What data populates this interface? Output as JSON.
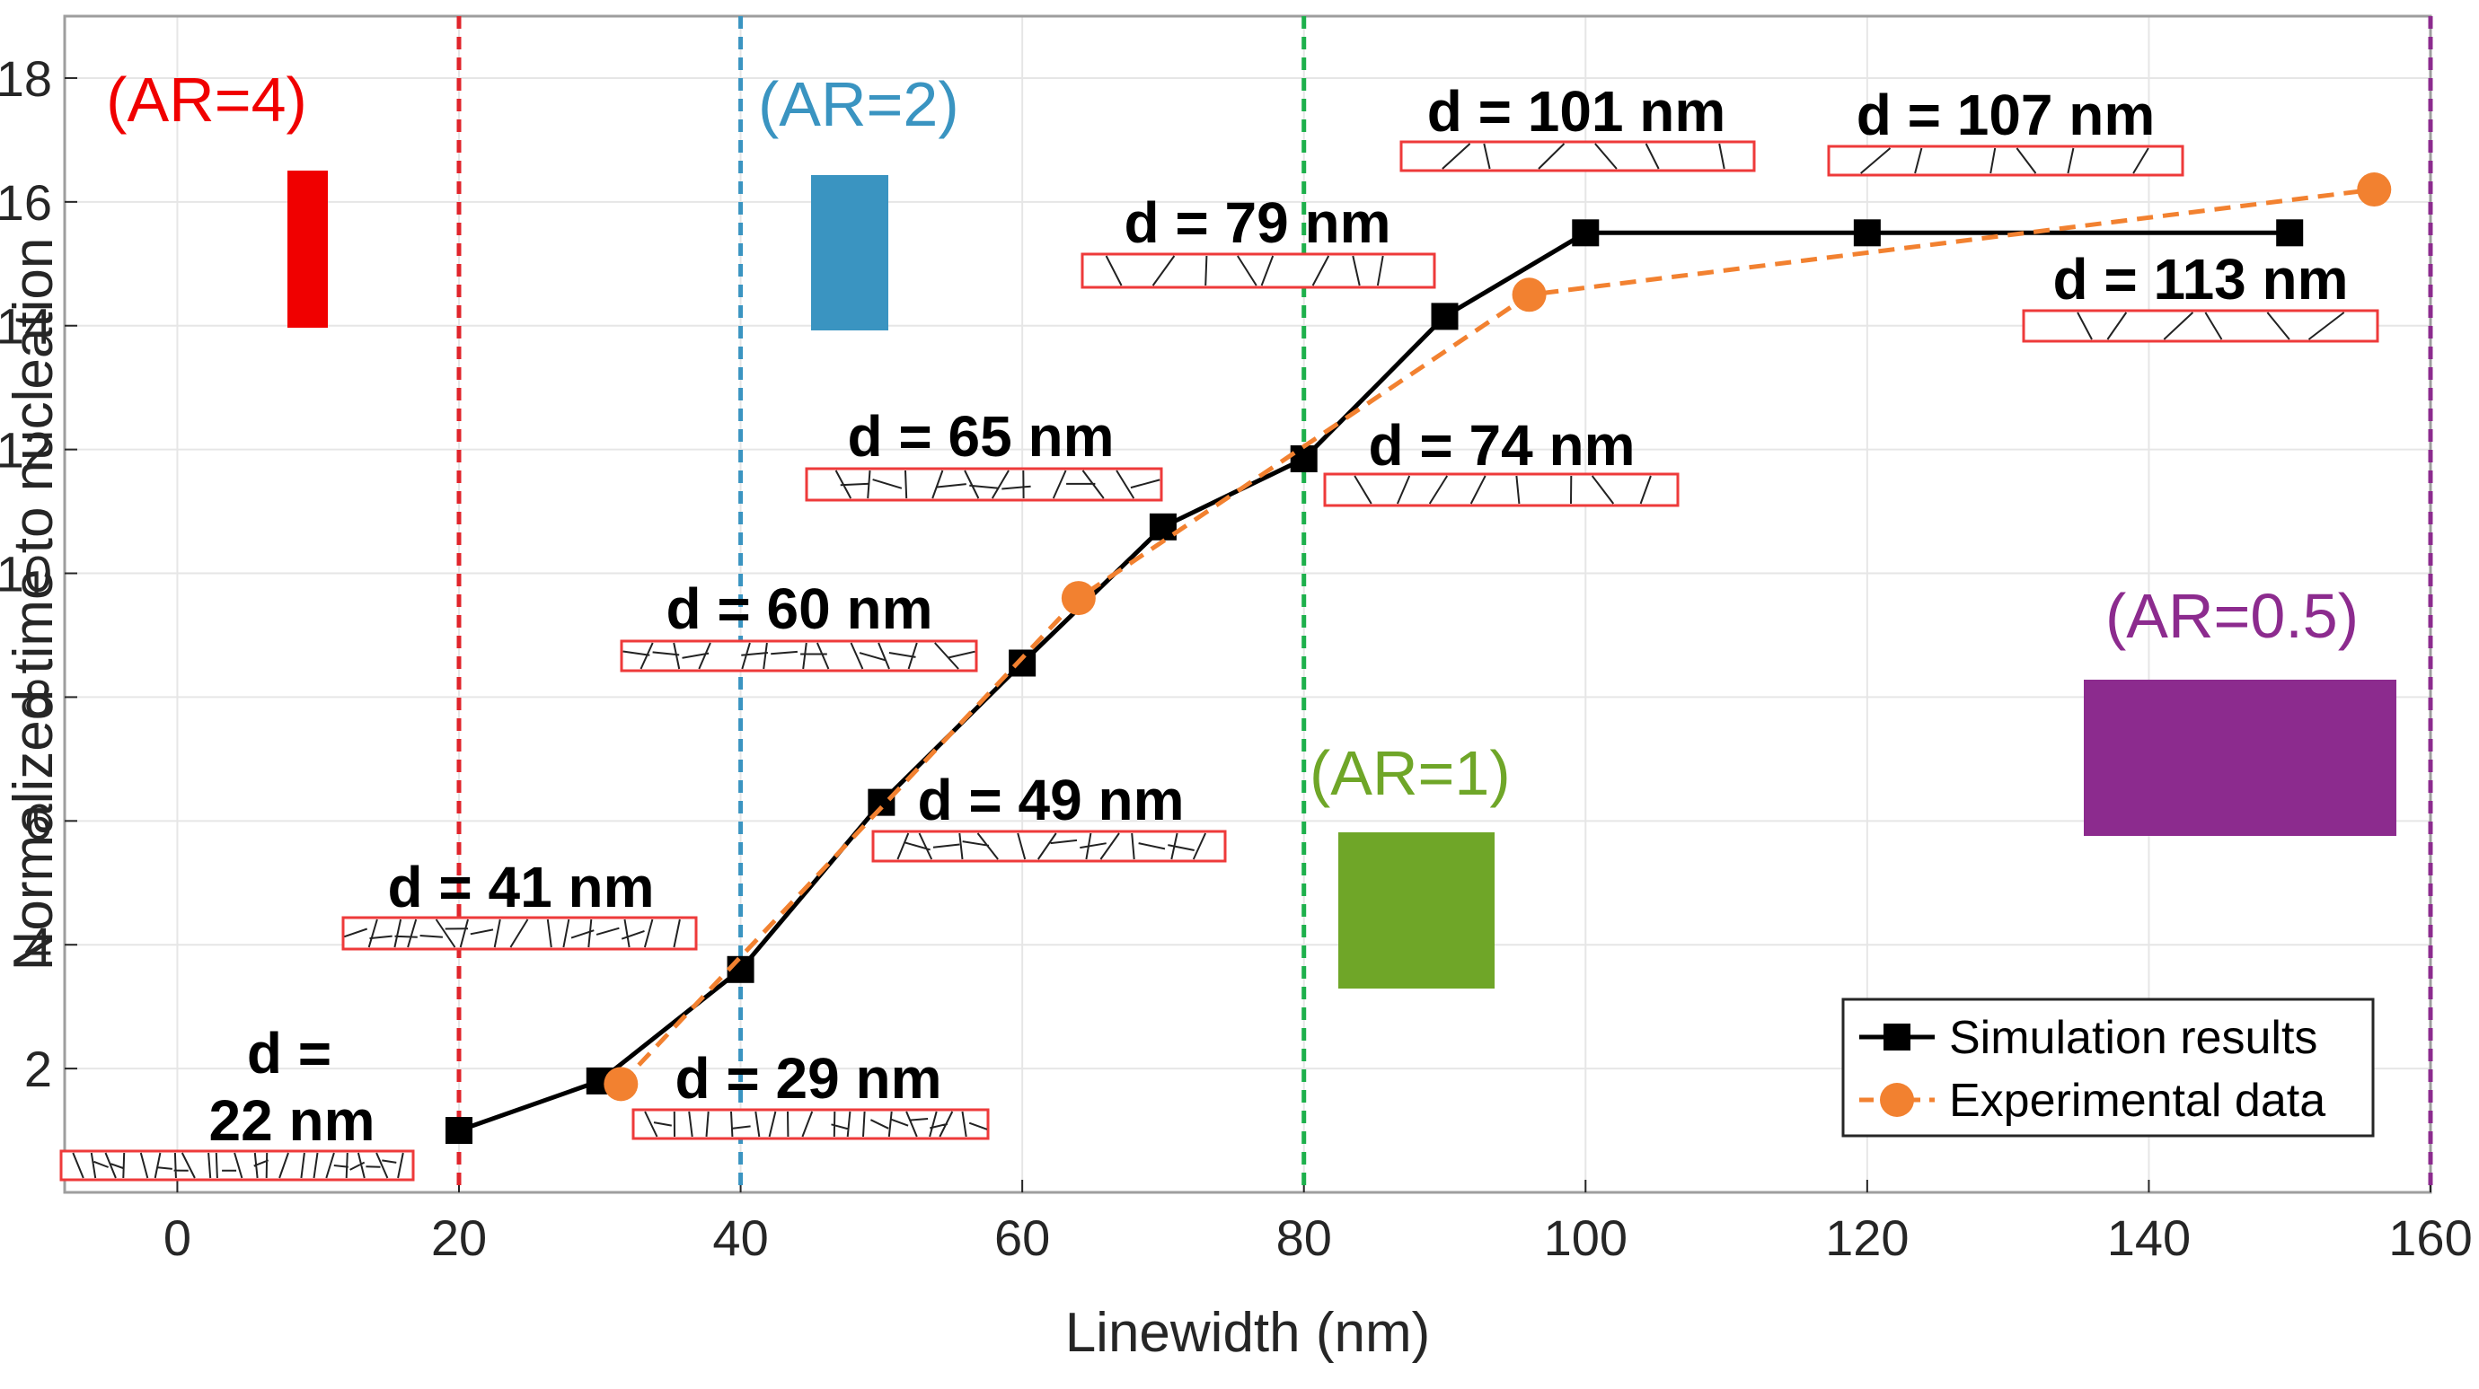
{
  "chart_data": {
    "type": "line",
    "xlabel": "Linewidth (nm)",
    "ylabel": "Normalized time to nucleation",
    "xlim": [
      -8,
      160
    ],
    "ylim": [
      0,
      19
    ],
    "grid": true,
    "x_ticks": [
      0,
      20,
      40,
      60,
      80,
      100,
      120,
      140,
      160
    ],
    "y_ticks": [
      2,
      4,
      6,
      8,
      10,
      12,
      14,
      16,
      18
    ],
    "legend_position": "bottom-right",
    "series": [
      {
        "name": "Simulation results",
        "color": "#000000",
        "style": "solid",
        "marker": "square",
        "x": [
          20,
          30,
          40,
          50,
          60,
          70,
          80,
          90,
          100,
          120,
          150
        ],
        "y": [
          1.0,
          1.8,
          3.6,
          6.3,
          8.55,
          10.75,
          11.85,
          14.15,
          15.5,
          15.5,
          15.5
        ]
      },
      {
        "name": "Experimental data",
        "color": "#F28130",
        "style": "dashed",
        "marker": "circle",
        "x": [
          31.5,
          64,
          96,
          156
        ],
        "y": [
          1.75,
          9.6,
          14.5,
          16.2
        ]
      }
    ],
    "vertical_lines": [
      {
        "x": 20,
        "color": "#E0242B"
      },
      {
        "x": 40,
        "color": "#3A94C1"
      },
      {
        "x": 80,
        "color": "#1DB04B"
      },
      {
        "x": 160,
        "color": "#8C2B8E"
      }
    ],
    "grain_annotations": [
      {
        "text": "d =",
        "text2": "22 nm",
        "density": 22
      },
      {
        "text": "d = 29 nm",
        "density": 18
      },
      {
        "text": "d = 41 nm",
        "density": 14
      },
      {
        "text": "d = 49 nm",
        "density": 12
      },
      {
        "text": "d = 60 nm",
        "density": 12
      },
      {
        "text": "d = 65 nm",
        "density": 11
      },
      {
        "text": "d = 74 nm",
        "density": 9
      },
      {
        "text": "d = 79 nm",
        "density": 9
      },
      {
        "text": "d = 101 nm",
        "density": 7
      },
      {
        "text": "d = 107 nm",
        "density": 7
      },
      {
        "text": "d = 113 nm",
        "density": 7
      }
    ],
    "aspect_ratio_annotations": [
      {
        "text": "(AR=4)",
        "color": "#F00000"
      },
      {
        "text": "(AR=2)",
        "color": "#3A94C1"
      },
      {
        "text": "(AR=1)",
        "color": "#6FA628"
      },
      {
        "text": "(AR=0.5)",
        "color": "#8C2B8E"
      }
    ]
  }
}
